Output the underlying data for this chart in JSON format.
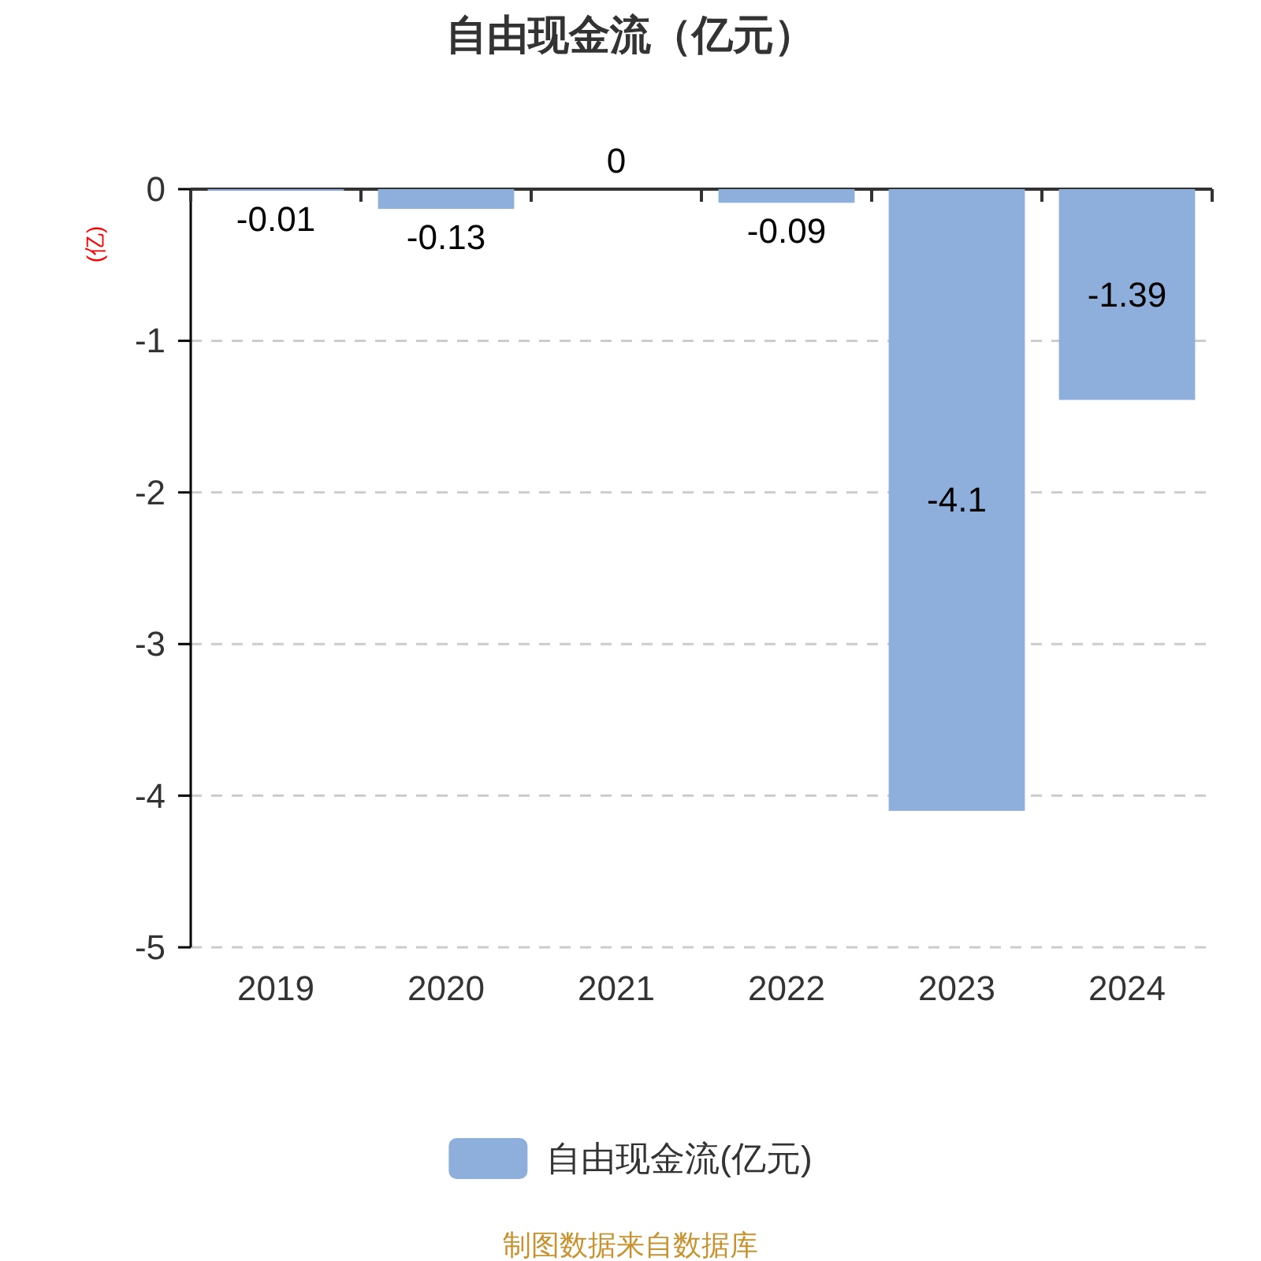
{
  "chart_data": {
    "type": "bar",
    "title": "自由现金流（亿元）",
    "ylabel": "(亿)",
    "categories": [
      "2019",
      "2020",
      "2021",
      "2022",
      "2023",
      "2024"
    ],
    "series": [
      {
        "name": "自由现金流(亿元)",
        "color": "#8eaedb",
        "values": [
          -0.01,
          -0.13,
          0,
          -0.09,
          -4.1,
          -1.39
        ]
      }
    ],
    "ylim": [
      -5,
      0
    ],
    "yticks": [
      0,
      -1,
      -2,
      -3,
      -4,
      -5
    ],
    "grid": "y",
    "legend": "bottom",
    "data_labels": true,
    "annotations": [
      "制图数据来自数据库"
    ]
  }
}
